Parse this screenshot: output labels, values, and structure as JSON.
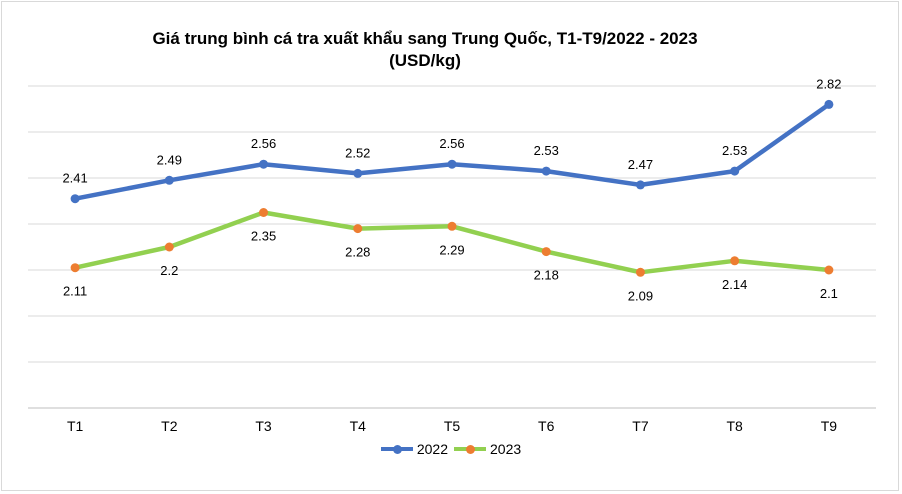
{
  "chart_data": {
    "type": "line",
    "title_line1": "Giá trung bình cá tra xuất khẩu sang Trung Quốc, T1-T9/2022 - 2023",
    "title_line2": "(USD/kg)",
    "categories": [
      "T1",
      "T2",
      "T3",
      "T4",
      "T5",
      "T6",
      "T7",
      "T8",
      "T9"
    ],
    "series": [
      {
        "name": "2022",
        "values": [
          2.41,
          2.49,
          2.56,
          2.52,
          2.56,
          2.53,
          2.47,
          2.53,
          2.82
        ],
        "labels": [
          "2.41",
          "2.49",
          "2.56",
          "2.52",
          "2.56",
          "2.53",
          "2.47",
          "2.53",
          "2.82"
        ],
        "line_color": "#4472c4",
        "marker_color": "#4472c4",
        "label_position": "above"
      },
      {
        "name": "2023",
        "values": [
          2.11,
          2.2,
          2.35,
          2.28,
          2.29,
          2.18,
          2.09,
          2.14,
          2.1
        ],
        "labels": [
          "2.11",
          "2.2",
          "2.35",
          "2.28",
          "2.29",
          "2.18",
          "2.09",
          "2.14",
          "2.1"
        ],
        "line_color": "#92d050",
        "marker_color": "#ed7d31",
        "label_position": "below"
      }
    ],
    "ylim": [
      1.5,
      2.9
    ],
    "grid": true,
    "legend_position": "bottom"
  }
}
